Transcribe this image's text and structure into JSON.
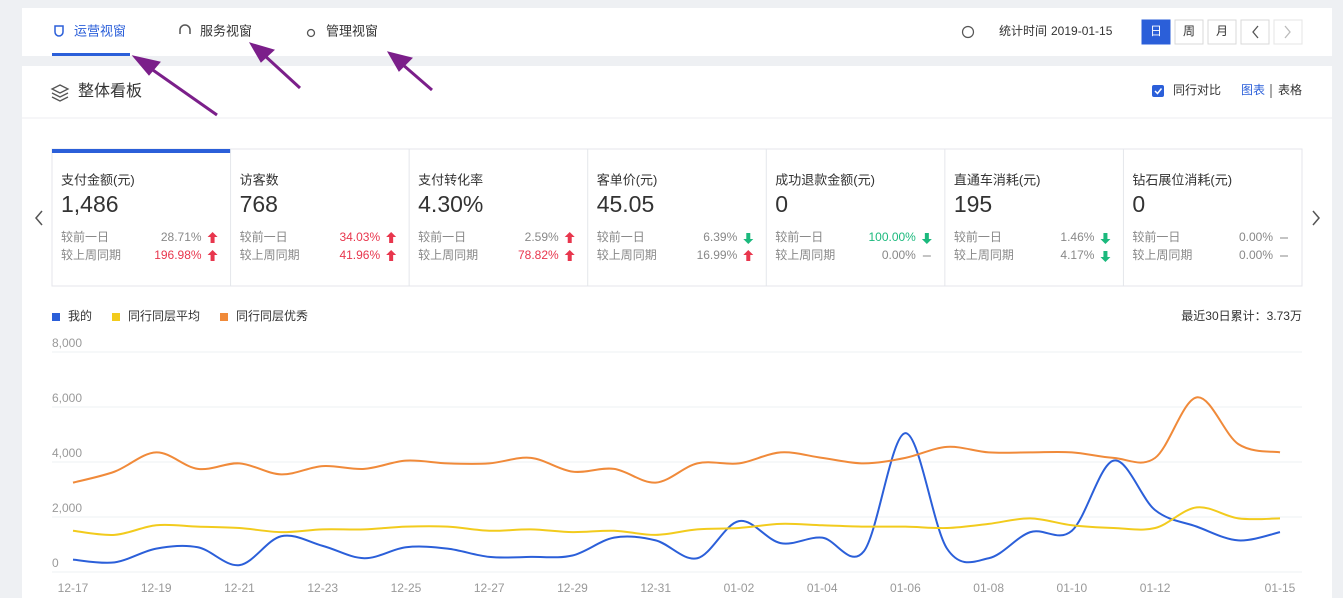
{
  "tabs": [
    "运营视窗",
    "服务视窗",
    "管理视窗"
  ],
  "stat_time": {
    "label": "统计时间",
    "date": "2019-01-15"
  },
  "periods": [
    "日",
    "周",
    "月"
  ],
  "panel": {
    "title": "整体看板",
    "compare": "同行对比",
    "views": [
      "图表",
      "表格"
    ]
  },
  "cards": [
    {
      "label": "支付金额(元)",
      "value": "1,486",
      "selected": true,
      "comparisons": [
        {
          "label": "较前一日",
          "value": "28.71%",
          "trend": "up",
          "color": "#888888"
        },
        {
          "label": "较上周同期",
          "value": "196.98%",
          "trend": "up",
          "color": "#e8364d"
        }
      ]
    },
    {
      "label": "访客数",
      "value": "768",
      "comparisons": [
        {
          "label": "较前一日",
          "value": "34.03%",
          "trend": "up",
          "color": "#e8364d"
        },
        {
          "label": "较上周同期",
          "value": "41.96%",
          "trend": "up",
          "color": "#e8364d"
        }
      ]
    },
    {
      "label": "支付转化率",
      "value": "4.30%",
      "comparisons": [
        {
          "label": "较前一日",
          "value": "2.59%",
          "trend": "up",
          "color": "#888888"
        },
        {
          "label": "较上周同期",
          "value": "78.82%",
          "trend": "up",
          "color": "#e8364d"
        }
      ]
    },
    {
      "label": "客单价(元)",
      "value": "45.05",
      "comparisons": [
        {
          "label": "较前一日",
          "value": "6.39%",
          "trend": "down",
          "color": "#888888"
        },
        {
          "label": "较上周同期",
          "value": "16.99%",
          "trend": "up",
          "color": "#888888"
        }
      ]
    },
    {
      "label": "成功退款金额(元)",
      "value": "0",
      "comparisons": [
        {
          "label": "较前一日",
          "value": "100.00%",
          "trend": "down",
          "color": "#1bb97d"
        },
        {
          "label": "较上周同期",
          "value": "0.00%",
          "trend": "flat",
          "color": "#888888"
        }
      ]
    },
    {
      "label": "直通车消耗(元)",
      "value": "195",
      "comparisons": [
        {
          "label": "较前一日",
          "value": "1.46%",
          "trend": "down",
          "color": "#888888"
        },
        {
          "label": "较上周同期",
          "value": "4.17%",
          "trend": "down",
          "color": "#888888"
        }
      ]
    },
    {
      "label": "钻石展位消耗(元)",
      "value": "0",
      "comparisons": [
        {
          "label": "较前一日",
          "value": "0.00%",
          "trend": "flat",
          "color": "#888888"
        },
        {
          "label": "较上周同期",
          "value": "0.00%",
          "trend": "flat",
          "color": "#888888"
        }
      ]
    }
  ],
  "chart_data": {
    "type": "line",
    "annotation": "最近30日累计：3.73万",
    "categories": [
      "12-17",
      null,
      "12-19",
      null,
      "12-21",
      null,
      "12-23",
      null,
      "12-25",
      null,
      "12-27",
      null,
      "12-29",
      null,
      "12-31",
      null,
      "01-02",
      null,
      "01-04",
      null,
      "01-06",
      null,
      "01-08",
      null,
      "01-10",
      null,
      "01-12",
      null,
      null,
      "01-15"
    ],
    "series": [
      {
        "name": "我的",
        "color": "#2b5fd9",
        "values": [
          450,
          350,
          850,
          900,
          250,
          1300,
          950,
          500,
          900,
          850,
          550,
          550,
          600,
          1250,
          1150,
          500,
          1850,
          1050,
          1250,
          750,
          5050,
          850,
          500,
          1450,
          1500,
          4050,
          2250,
          1650,
          1150,
          1450
        ]
      },
      {
        "name": "同行同层平均",
        "color": "#f2cb1d",
        "values": [
          1500,
          1350,
          1700,
          1650,
          1600,
          1450,
          1550,
          1550,
          1650,
          1650,
          1500,
          1550,
          1450,
          1500,
          1350,
          1550,
          1600,
          1750,
          1700,
          1650,
          1650,
          1600,
          1750,
          1950,
          1700,
          1600,
          1600,
          2350,
          1950,
          1950
        ]
      },
      {
        "name": "同行同层优秀",
        "color": "#f08a3a",
        "values": [
          3250,
          3650,
          4350,
          3750,
          3950,
          3550,
          3850,
          3750,
          4050,
          3950,
          3950,
          4150,
          3650,
          3750,
          3250,
          3950,
          3950,
          4350,
          4150,
          3950,
          4150,
          4550,
          4350,
          4350,
          4350,
          4150,
          4150,
          6350,
          4650,
          4350
        ]
      }
    ],
    "ylim": [
      0,
      8000
    ],
    "yticks": [
      0,
      {
        "value": 2000,
        "label": "2,000"
      },
      {
        "value": 4000,
        "label": "4,000"
      },
      {
        "value": 6000,
        "label": "6,000"
      },
      {
        "value": 8000,
        "label": "8,000"
      }
    ],
    "grid": true
  }
}
